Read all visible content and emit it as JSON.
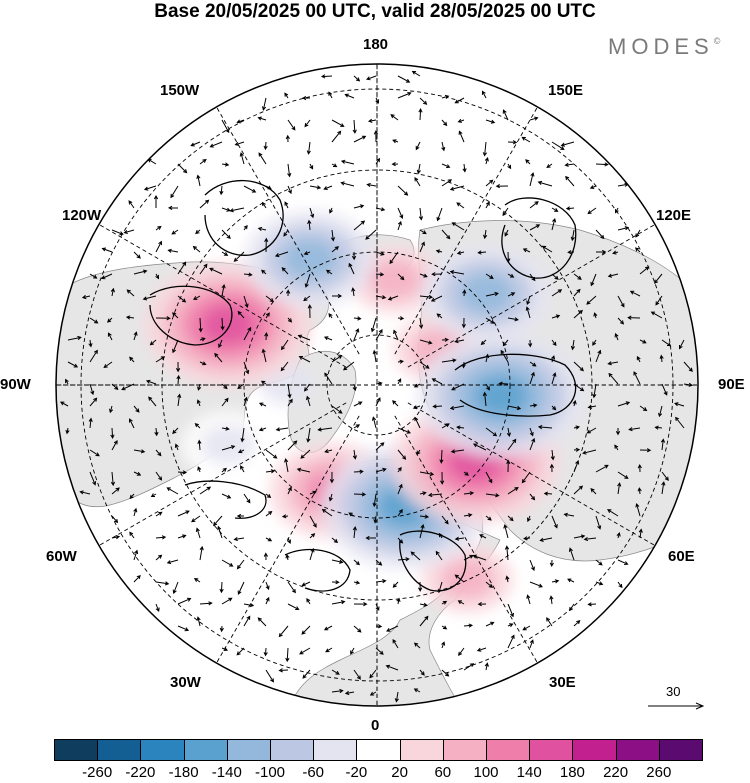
{
  "title": "Base 20/05/2025 00 UTC, valid 28/05/2025 00 UTC",
  "logo": "MODES",
  "logo_mark": "©",
  "longitude_labels": {
    "top": "180",
    "bottom": "0",
    "left": "90W",
    "right": "90E",
    "upper_left_1": "150W",
    "upper_left_2": "120W",
    "upper_right_1": "150E",
    "upper_right_2": "120E",
    "lower_left_1": "60W",
    "lower_left_2": "30W",
    "lower_right_1": "60E",
    "lower_right_2": "30E"
  },
  "reference_vector": "30",
  "colorbar": {
    "colors": [
      "#0e3d5e",
      "#135e92",
      "#2b84be",
      "#5aa1cf",
      "#93b8dc",
      "#bcc8e3",
      "#e4e4f1",
      "#ffffff",
      "#f9d6dc",
      "#f5b1c3",
      "#f07eab",
      "#e0529f",
      "#c21f8f",
      "#8d0f86",
      "#5b0a6f"
    ],
    "ticks": [
      "-260",
      "-220",
      "-180",
      "-140",
      "-100",
      "-60",
      "-20",
      "20",
      "60",
      "100",
      "140",
      "180",
      "220",
      "260"
    ]
  },
  "anomalies": [
    {
      "lat": 50,
      "lon": -152,
      "value": -120
    },
    {
      "lat": 50,
      "lon": 130,
      "value": -130
    },
    {
      "lat": 55,
      "lon": 85,
      "value": -170
    },
    {
      "lat": 45,
      "lon": -112,
      "value": 150
    },
    {
      "lat": 55,
      "lon": 52,
      "value": 140
    },
    {
      "lat": 55,
      "lon": 13,
      "value": -170
    },
    {
      "lat": 58,
      "lon": -22,
      "value": 130
    },
    {
      "lat": 60,
      "lon": 170,
      "value": 60
    },
    {
      "lat": 45,
      "lon": -68,
      "value": -60
    },
    {
      "lat": 30,
      "lon": 25,
      "value": 60
    },
    {
      "lat": 70,
      "lon": 120,
      "value": 60
    },
    {
      "lat": 65,
      "lon": -90,
      "value": -40
    },
    {
      "lat": 45,
      "lon": 65,
      "value": -40
    }
  ]
}
